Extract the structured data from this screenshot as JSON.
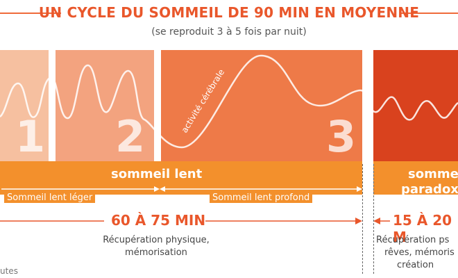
{
  "header": {
    "title": "UN CYCLE DU SOMMEIL DE 90 MIN EN MOYENNE",
    "subtitle": "(se reproduit 3 à 5 fois par nuit)"
  },
  "stages": {
    "stage1": "1",
    "stage2": "2",
    "stage3": "3"
  },
  "wave_label": "activité cérébrale",
  "bands": {
    "slow_sleep": "sommeil lent",
    "light_sleep": "Sommeil lent léger",
    "deep_sleep": "Sommeil lent profond",
    "paradoxical_line1": "sommeil",
    "paradoxical_line2": "paradox"
  },
  "durations": {
    "slow": "60 À 75 MIN",
    "paradoxical": "15 À 20 M"
  },
  "descriptions": {
    "slow_line1": "Récupération physique,",
    "slow_line2": "mémorisation",
    "par_line1": "Récupération ps",
    "par_line2": "rêves, mémoris",
    "par_line3": "création"
  },
  "footer": {
    "source": "utes"
  },
  "colors": {
    "accent": "#e9572b",
    "band": "#f3902c",
    "stage1": "#f6c0a0",
    "stage2": "#f3a37f",
    "stage3": "#ee7a48",
    "paradoxical": "#d9421e"
  }
}
